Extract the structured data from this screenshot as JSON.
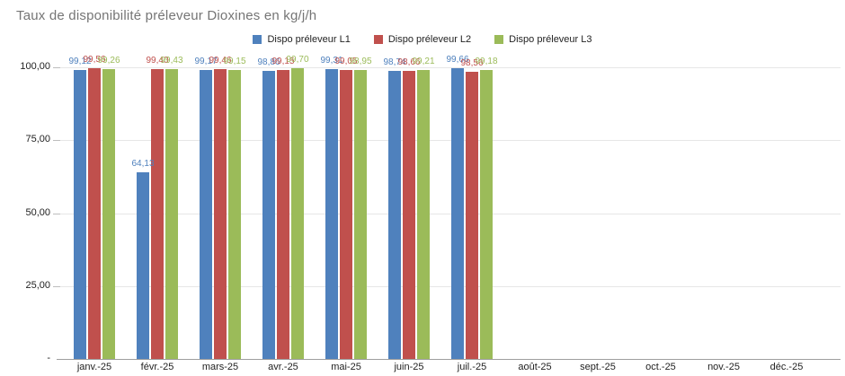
{
  "chart_data": {
    "type": "bar",
    "title": "Taux de disponibilité préleveur Dioxines en kg/j/h",
    "categories": [
      "janv.-25",
      "févr.-25",
      "mars-25",
      "avr.-25",
      "mai-25",
      "juin-25",
      "juil.-25",
      "août-25",
      "sept.-25",
      "oct.-25",
      "nov.-25",
      "déc.-25"
    ],
    "series": [
      {
        "name": "Dispo préleveur L1",
        "color": "#4f81bd",
        "values": [
          99.12,
          64.13,
          99.17,
          98.86,
          99.31,
          98.74,
          99.66,
          null,
          null,
          null,
          null,
          null
        ],
        "labels": [
          "99,12",
          "64,13",
          "99,17",
          "98,86",
          "99,31",
          "98,74",
          "99,66",
          "",
          "",
          "",
          "",
          ""
        ]
      },
      {
        "name": "Dispo préleveur L2",
        "color": "#c0504d",
        "values": [
          99.56,
          99.4,
          99.46,
          99.15,
          99.05,
          98.66,
          98.56,
          null,
          null,
          null,
          null,
          null
        ],
        "labels": [
          "99,56",
          "99,40",
          "99,46",
          "99,15",
          "99,05",
          "98,66",
          "98,56",
          "",
          "",
          "",
          "",
          ""
        ]
      },
      {
        "name": "Dispo préleveur L3",
        "color": "#9bbb59",
        "values": [
          99.26,
          99.43,
          99.15,
          99.7,
          98.95,
          99.21,
          99.18,
          null,
          null,
          null,
          null,
          null
        ],
        "labels": [
          "99,26",
          "99,43",
          "99,15",
          "99,70",
          "98,95",
          "99,21",
          "99,18",
          "",
          "",
          "",
          "",
          ""
        ]
      }
    ],
    "ylim": [
      0,
      100
    ],
    "yticks": [
      {
        "label": "100,00",
        "value": 100
      },
      {
        "label": "75,00",
        "value": 75
      },
      {
        "label": "50,00",
        "value": 50
      },
      {
        "label": "25,00",
        "value": 25
      },
      {
        "label": "-",
        "value": 0
      }
    ],
    "grid": true,
    "legend_position": "top"
  }
}
